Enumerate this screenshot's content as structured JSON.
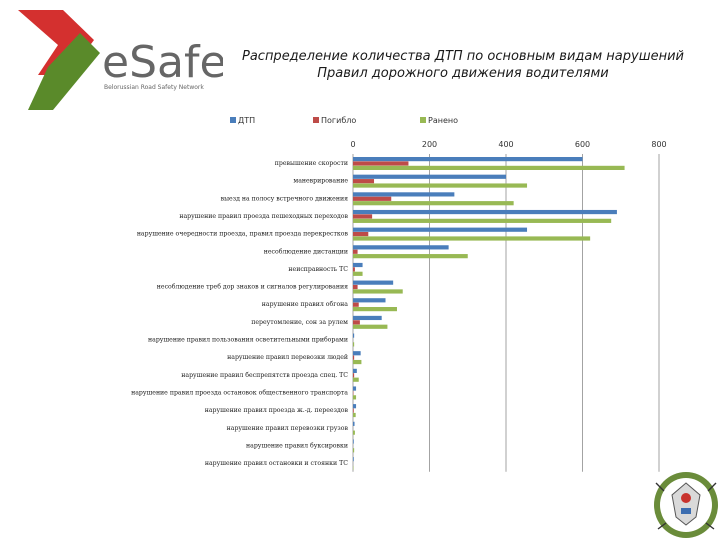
{
  "brand": {
    "name": "eSafe",
    "tagline": "Belorussian Road Safety Network",
    "colors": {
      "red": "#d4302f",
      "green": "#5a8a2a",
      "gray": "#6e6e6e"
    }
  },
  "page": {
    "title_line1": "Распределение количества ДТП по основным видам нарушений",
    "title_line2": "Правил дорожного движения водителями"
  },
  "chart_data": {
    "type": "bar",
    "orientation": "horizontal",
    "categories": [
      "превышение скорости",
      "маневрирование",
      "выезд на полосу встречного движения",
      "нарушение правил проезда пешеходных переходов",
      "нарушение очередности проезда, правил проезда перекрестков",
      "несоблюдение дистанции",
      "неисправность ТС",
      "несоблюдение треб дор знаков и сигналов регулирования",
      "нарушение правил обгона",
      "переутомление, сон за рулем",
      "нарушение правил пользования осветительными приборами",
      "нарушение правил перевозки людей",
      "нарушение правил беспрепятств проезда спец. ТС",
      "нарушение правил проезда остановок общественного транспорта",
      "нарушение правил проезда ж.-д. переездов",
      "нарушение правил перевозки грузов",
      "нарушение правил буксировки",
      "нарушение правил остановки и стоянки ТС"
    ],
    "series": [
      {
        "name": "ДТП",
        "color": "#4a7ebb",
        "values": [
          600,
          400,
          265,
          690,
          455,
          250,
          25,
          105,
          85,
          75,
          3,
          20,
          10,
          8,
          8,
          4,
          2,
          2
        ]
      },
      {
        "name": "Погибло",
        "color": "#be4b48",
        "values": [
          145,
          55,
          100,
          50,
          40,
          12,
          5,
          12,
          15,
          18,
          0,
          3,
          3,
          1,
          2,
          0,
          0,
          0
        ]
      },
      {
        "name": "Ранено",
        "color": "#98b954",
        "values": [
          710,
          455,
          420,
          675,
          620,
          300,
          25,
          130,
          115,
          90,
          3,
          22,
          15,
          8,
          7,
          5,
          3,
          1
        ]
      }
    ],
    "xlim": [
      0,
      800
    ],
    "xticks": [
      "0",
      "200",
      "400",
      "600",
      "800"
    ],
    "legend_position": "top",
    "grid": "vertical",
    "title": "Распределение количества ДТП по основным видам нарушений Правил дорожного движения водителями"
  }
}
